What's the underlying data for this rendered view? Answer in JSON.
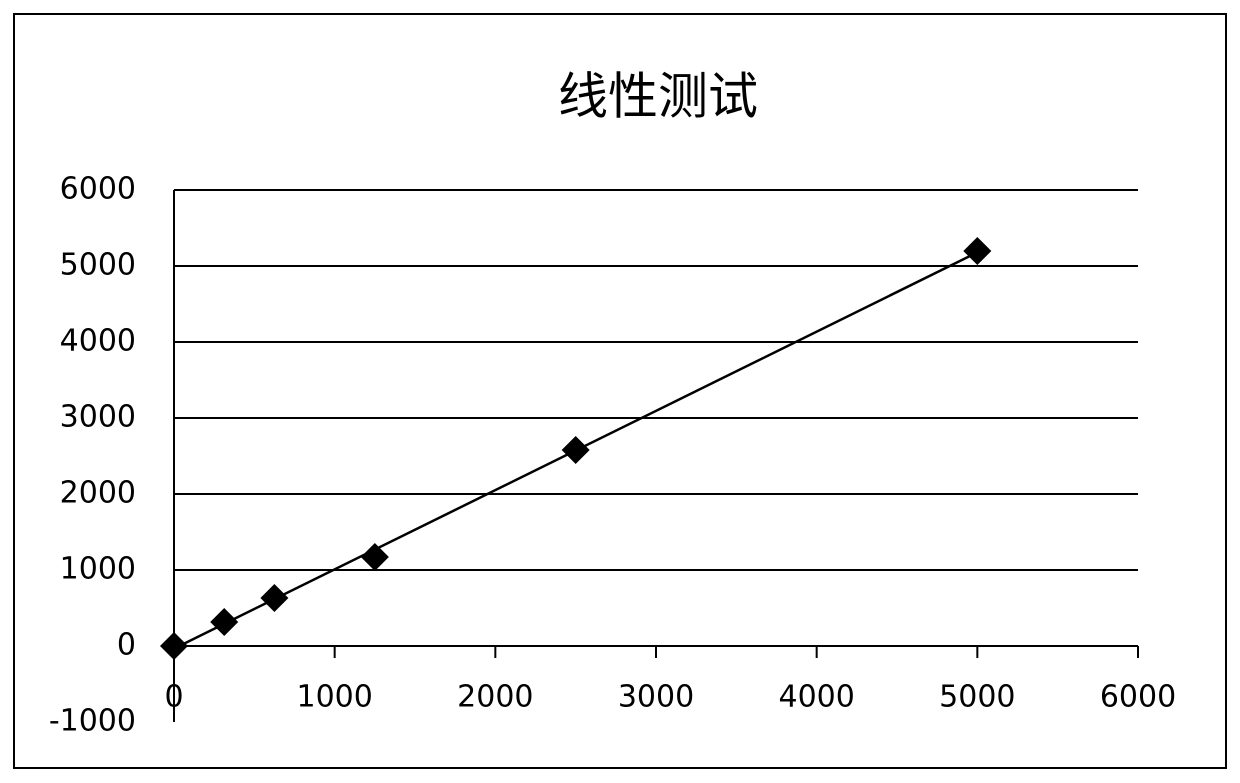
{
  "chart_data": {
    "type": "scatter",
    "title": "线性测试",
    "series": [
      {
        "color": "#000000",
        "x": [
          0,
          312.5,
          625,
          1250,
          2500,
          5000
        ],
        "values": [
          0,
          316,
          632,
          1171,
          2579,
          5197
        ]
      }
    ],
    "trendline": true,
    "xlim": [
      0,
      6000
    ],
    "xticks": [
      0,
      1000,
      2000,
      3000,
      4000,
      5000,
      6000
    ],
    "ylim": [
      -1000,
      6000
    ],
    "yticks": [
      -1000,
      0,
      1000,
      2000,
      3000,
      4000,
      5000,
      6000
    ],
    "grid": true
  }
}
